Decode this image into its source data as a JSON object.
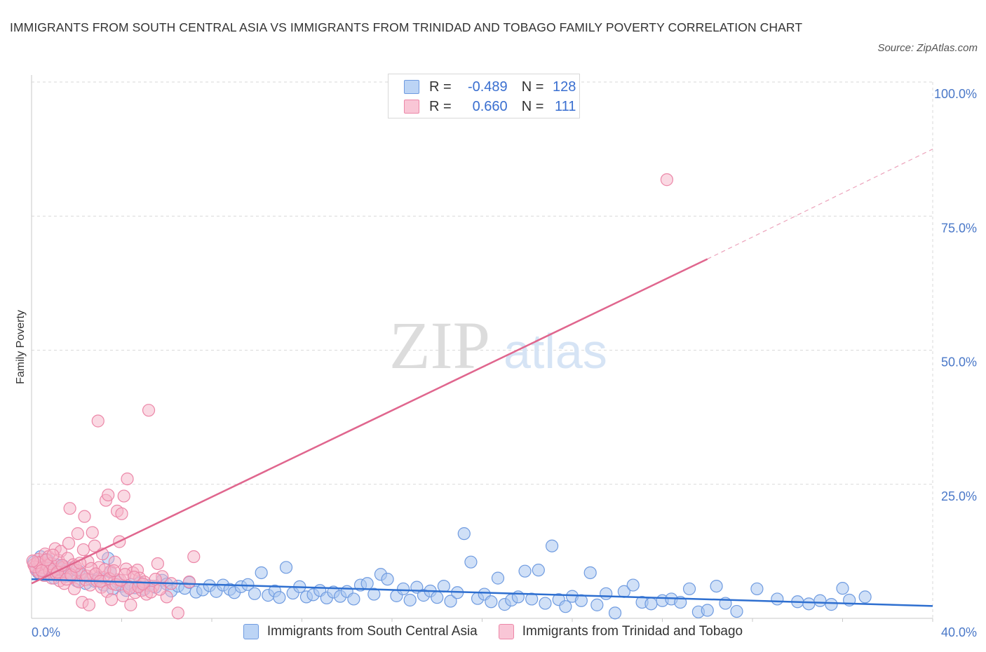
{
  "title": "IMMIGRANTS FROM SOUTH CENTRAL ASIA VS IMMIGRANTS FROM TRINIDAD AND TOBAGO FAMILY POVERTY CORRELATION CHART",
  "source": "Source: ZipAtlas.com",
  "watermark": {
    "zip": "ZIP",
    "atlas": "atlas"
  },
  "legend": {
    "series1": {
      "r_label": "R =",
      "r_value": "-0.489",
      "n_label": "N =",
      "n_value": "128"
    },
    "series2": {
      "r_label": "R =",
      "r_value": "0.660",
      "n_label": "N =",
      "n_value": "111"
    }
  },
  "colors": {
    "blue_fill": "#a9c6f0",
    "blue_stroke": "#6f9be0",
    "blue_line": "#2e6fd0",
    "pink_fill": "#f6b3c8",
    "pink_stroke": "#ec87a8",
    "pink_line": "#e0668e",
    "grid": "#d9d9d9",
    "axis_text": "#4a78c8"
  },
  "chart_data": {
    "type": "scatter",
    "ylabel": "Family Poverty",
    "xlabel": "",
    "xlim": [
      0,
      40
    ],
    "ylim": [
      0,
      100
    ],
    "x_tick_labels": [
      "0.0%",
      "40.0%"
    ],
    "y_tick_labels": [
      "25.0%",
      "50.0%",
      "75.0%",
      "100.0%"
    ],
    "y_ticks": [
      25,
      50,
      75,
      100
    ],
    "series": [
      {
        "name": "Immigrants from South Central Asia",
        "color": "blue",
        "trend": {
          "x0": 0,
          "y0": 7.3,
          "x1": 40,
          "y1": 2.3
        },
        "points": [
          [
            0.1,
            10.5
          ],
          [
            0.2,
            9.2
          ],
          [
            0.3,
            8.5
          ],
          [
            0.4,
            10.2
          ],
          [
            0.5,
            9.0
          ],
          [
            0.6,
            8.0
          ],
          [
            0.7,
            11.0
          ],
          [
            0.8,
            9.5
          ],
          [
            0.9,
            8.8
          ],
          [
            1.0,
            7.5
          ],
          [
            1.1,
            10.0
          ],
          [
            1.2,
            8.2
          ],
          [
            1.3,
            9.1
          ],
          [
            1.5,
            7.8
          ],
          [
            1.6,
            8.6
          ],
          [
            1.8,
            9.4
          ],
          [
            2.0,
            7.0
          ],
          [
            2.2,
            8.1
          ],
          [
            2.4,
            6.5
          ],
          [
            2.6,
            7.3
          ],
          [
            2.8,
            6.9
          ],
          [
            3.0,
            7.6
          ],
          [
            3.2,
            6.2
          ],
          [
            3.4,
            11.2
          ],
          [
            3.6,
            5.5
          ],
          [
            3.8,
            6.8
          ],
          [
            4.0,
            6.0
          ],
          [
            4.2,
            5.2
          ],
          [
            4.4,
            6.3
          ],
          [
            4.6,
            5.7
          ],
          [
            4.8,
            6.6
          ],
          [
            5.0,
            5.4
          ],
          [
            5.2,
            6.1
          ],
          [
            5.5,
            5.8
          ],
          [
            5.8,
            7.1
          ],
          [
            6.0,
            6.4
          ],
          [
            6.2,
            5.1
          ],
          [
            6.5,
            6.0
          ],
          [
            6.8,
            5.6
          ],
          [
            7.0,
            6.7
          ],
          [
            7.3,
            4.9
          ],
          [
            7.6,
            5.3
          ],
          [
            7.9,
            6.1
          ],
          [
            8.2,
            5.0
          ],
          [
            8.5,
            6.2
          ],
          [
            8.8,
            5.4
          ],
          [
            9.0,
            4.8
          ],
          [
            9.3,
            5.9
          ],
          [
            9.6,
            6.3
          ],
          [
            9.9,
            4.6
          ],
          [
            10.2,
            8.5
          ],
          [
            10.5,
            4.3
          ],
          [
            10.8,
            5.1
          ],
          [
            11.0,
            3.9
          ],
          [
            11.3,
            9.5
          ],
          [
            11.6,
            4.7
          ],
          [
            11.9,
            5.9
          ],
          [
            12.2,
            4.0
          ],
          [
            12.5,
            4.4
          ],
          [
            12.8,
            5.2
          ],
          [
            13.1,
            3.8
          ],
          [
            13.4,
            4.9
          ],
          [
            13.7,
            4.1
          ],
          [
            14.0,
            5.0
          ],
          [
            14.3,
            3.6
          ],
          [
            14.6,
            6.2
          ],
          [
            14.9,
            6.5
          ],
          [
            15.2,
            4.5
          ],
          [
            15.5,
            8.2
          ],
          [
            15.8,
            7.3
          ],
          [
            16.2,
            4.2
          ],
          [
            16.5,
            5.5
          ],
          [
            16.8,
            3.4
          ],
          [
            17.1,
            5.8
          ],
          [
            17.4,
            4.3
          ],
          [
            17.7,
            5.1
          ],
          [
            18.0,
            3.9
          ],
          [
            18.3,
            6.0
          ],
          [
            18.6,
            3.2
          ],
          [
            18.9,
            4.8
          ],
          [
            19.2,
            15.8
          ],
          [
            19.5,
            10.5
          ],
          [
            19.8,
            3.7
          ],
          [
            20.1,
            4.5
          ],
          [
            20.4,
            3.1
          ],
          [
            20.7,
            7.5
          ],
          [
            21.0,
            2.6
          ],
          [
            21.3,
            3.4
          ],
          [
            21.6,
            4.0
          ],
          [
            21.9,
            8.8
          ],
          [
            22.2,
            3.6
          ],
          [
            22.5,
            9.0
          ],
          [
            22.8,
            2.8
          ],
          [
            23.1,
            13.5
          ],
          [
            23.4,
            3.5
          ],
          [
            23.7,
            2.2
          ],
          [
            24.0,
            4.1
          ],
          [
            24.4,
            3.3
          ],
          [
            24.8,
            8.5
          ],
          [
            25.1,
            2.5
          ],
          [
            25.5,
            4.6
          ],
          [
            25.9,
            1.0
          ],
          [
            26.3,
            5.0
          ],
          [
            26.7,
            6.2
          ],
          [
            27.1,
            3.0
          ],
          [
            27.5,
            2.7
          ],
          [
            28.0,
            3.3
          ],
          [
            28.4,
            3.6
          ],
          [
            28.8,
            3.0
          ],
          [
            29.2,
            5.5
          ],
          [
            29.6,
            1.2
          ],
          [
            30.0,
            1.5
          ],
          [
            30.4,
            6.0
          ],
          [
            30.8,
            2.8
          ],
          [
            31.3,
            1.3
          ],
          [
            32.2,
            5.5
          ],
          [
            33.1,
            3.6
          ],
          [
            34.0,
            3.1
          ],
          [
            34.5,
            2.7
          ],
          [
            35.0,
            3.3
          ],
          [
            35.5,
            2.6
          ],
          [
            36.0,
            5.6
          ],
          [
            36.3,
            3.4
          ],
          [
            37.0,
            4.0
          ],
          [
            0.4,
            11.5
          ],
          [
            1.4,
            9.8
          ],
          [
            2.1,
            8.8
          ],
          [
            3.5,
            8.6
          ]
        ]
      },
      {
        "name": "Immigrants from Trinidad and Tobago",
        "color": "pink",
        "trend": {
          "x0": 0,
          "y0": 6.5,
          "x1": 30,
          "y1": 67.0,
          "dash_x1": 40,
          "dash_y1": 87.5
        },
        "points": [
          [
            0.1,
            10.0
          ],
          [
            0.2,
            9.0
          ],
          [
            0.3,
            11.0
          ],
          [
            0.35,
            8.5
          ],
          [
            0.4,
            10.5
          ],
          [
            0.5,
            9.5
          ],
          [
            0.55,
            8.0
          ],
          [
            0.6,
            12.0
          ],
          [
            0.7,
            9.8
          ],
          [
            0.75,
            11.5
          ],
          [
            0.8,
            8.8
          ],
          [
            0.85,
            10.2
          ],
          [
            0.9,
            7.5
          ],
          [
            1.0,
            9.2
          ],
          [
            1.05,
            13.0
          ],
          [
            1.1,
            8.2
          ],
          [
            1.2,
            10.8
          ],
          [
            1.25,
            7.0
          ],
          [
            1.3,
            12.5
          ],
          [
            1.4,
            9.5
          ],
          [
            1.45,
            6.5
          ],
          [
            1.5,
            8.7
          ],
          [
            1.6,
            11.2
          ],
          [
            1.65,
            14.0
          ],
          [
            1.7,
            20.5
          ],
          [
            1.8,
            7.8
          ],
          [
            1.85,
            10.0
          ],
          [
            1.9,
            5.5
          ],
          [
            2.0,
            9.0
          ],
          [
            2.05,
            15.8
          ],
          [
            2.1,
            6.8
          ],
          [
            2.2,
            8.4
          ],
          [
            2.25,
            3.0
          ],
          [
            2.3,
            12.8
          ],
          [
            2.35,
            19.0
          ],
          [
            2.4,
            7.2
          ],
          [
            2.5,
            10.6
          ],
          [
            2.55,
            2.5
          ],
          [
            2.6,
            6.2
          ],
          [
            2.7,
            16.0
          ],
          [
            2.75,
            8.0
          ],
          [
            2.8,
            13.5
          ],
          [
            2.9,
            7.0
          ],
          [
            2.95,
            36.8
          ],
          [
            3.0,
            9.5
          ],
          [
            3.1,
            5.8
          ],
          [
            3.15,
            12.0
          ],
          [
            3.2,
            7.6
          ],
          [
            3.3,
            22.0
          ],
          [
            3.35,
            5.0
          ],
          [
            3.4,
            23.0
          ],
          [
            3.5,
            8.8
          ],
          [
            3.55,
            3.5
          ],
          [
            3.6,
            6.5
          ],
          [
            3.7,
            10.5
          ],
          [
            3.8,
            20.0
          ],
          [
            3.85,
            7.2
          ],
          [
            3.9,
            14.3
          ],
          [
            4.0,
            19.5
          ],
          [
            4.05,
            4.2
          ],
          [
            4.1,
            22.8
          ],
          [
            4.2,
            9.2
          ],
          [
            4.25,
            26.0
          ],
          [
            4.3,
            6.0
          ],
          [
            4.4,
            2.5
          ],
          [
            4.5,
            8.5
          ],
          [
            4.6,
            4.8
          ],
          [
            4.7,
            9.0
          ],
          [
            4.8,
            7.5
          ],
          [
            4.9,
            5.2
          ],
          [
            5.0,
            6.8
          ],
          [
            5.1,
            4.5
          ],
          [
            5.2,
            38.8
          ],
          [
            5.4,
            6.0
          ],
          [
            5.6,
            10.2
          ],
          [
            5.8,
            7.8
          ],
          [
            6.0,
            4.0
          ],
          [
            6.2,
            6.5
          ],
          [
            6.5,
            1.0
          ],
          [
            7.0,
            6.8
          ],
          [
            7.2,
            11.5
          ],
          [
            0.15,
            9.6
          ],
          [
            0.25,
            10.4
          ],
          [
            0.45,
            8.9
          ],
          [
            0.65,
            10.9
          ],
          [
            0.95,
            11.8
          ],
          [
            1.15,
            8.6
          ],
          [
            1.35,
            9.9
          ],
          [
            1.55,
            7.3
          ],
          [
            1.75,
            8.1
          ],
          [
            1.95,
            9.7
          ],
          [
            2.15,
            10.3
          ],
          [
            2.45,
            7.9
          ],
          [
            2.65,
            9.3
          ],
          [
            2.85,
            8.3
          ],
          [
            3.05,
            6.9
          ],
          [
            3.25,
            9.1
          ],
          [
            3.45,
            7.4
          ],
          [
            3.65,
            8.9
          ],
          [
            3.75,
            6.3
          ],
          [
            3.95,
            7.1
          ],
          [
            4.15,
            8.2
          ],
          [
            4.35,
            5.6
          ],
          [
            4.55,
            7.7
          ],
          [
            4.75,
            5.9
          ],
          [
            4.95,
            6.4
          ],
          [
            5.3,
            4.9
          ],
          [
            5.5,
            7.3
          ],
          [
            5.7,
            5.4
          ],
          [
            0.05,
            10.7
          ],
          [
            28.2,
            81.8
          ]
        ]
      }
    ]
  }
}
